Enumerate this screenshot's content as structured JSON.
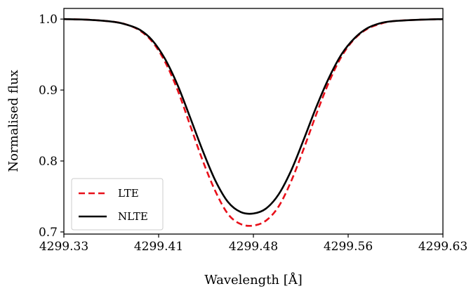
{
  "chart_data": {
    "type": "line",
    "xlabel": "Wavelength [Å]",
    "ylabel": "Normalised flux",
    "xlim": [
      4299.33,
      4299.63
    ],
    "ylim": [
      0.697,
      1.015
    ],
    "x_ticks": [
      "4299.33",
      "4299.41",
      "4299.48",
      "4299.56",
      "4299.63"
    ],
    "x_tick_values": [
      4299.33,
      4299.405,
      4299.48,
      4299.555,
      4299.63
    ],
    "y_ticks": [
      "0.7",
      "0.8",
      "0.9",
      "1.0"
    ],
    "y_tick_values": [
      0.7,
      0.8,
      0.9,
      1.0
    ],
    "grid": false,
    "legend_position": "bottom-left",
    "x": [
      4299.33,
      4299.35,
      4299.37,
      4299.38,
      4299.39,
      4299.4,
      4299.41,
      4299.42,
      4299.43,
      4299.44,
      4299.45,
      4299.46,
      4299.47,
      4299.48,
      4299.49,
      4299.5,
      4299.51,
      4299.52,
      4299.53,
      4299.54,
      4299.55,
      4299.56,
      4299.57,
      4299.58,
      4299.59,
      4299.61,
      4299.63
    ],
    "series": [
      {
        "name": "LTE",
        "color": "#e8101a",
        "style": "dashed",
        "values": [
          1.0,
          0.999,
          0.996,
          0.992,
          0.984,
          0.968,
          0.94,
          0.9,
          0.85,
          0.8,
          0.757,
          0.725,
          0.711,
          0.709,
          0.716,
          0.736,
          0.772,
          0.818,
          0.867,
          0.912,
          0.948,
          0.972,
          0.986,
          0.993,
          0.997,
          0.999,
          1.0
        ]
      },
      {
        "name": "NLTE",
        "color": "#000000",
        "style": "solid",
        "values": [
          1.0,
          0.999,
          0.996,
          0.992,
          0.985,
          0.97,
          0.944,
          0.907,
          0.861,
          0.814,
          0.772,
          0.742,
          0.728,
          0.726,
          0.733,
          0.753,
          0.787,
          0.831,
          0.877,
          0.918,
          0.951,
          0.973,
          0.987,
          0.994,
          0.997,
          0.999,
          1.0
        ]
      }
    ]
  }
}
